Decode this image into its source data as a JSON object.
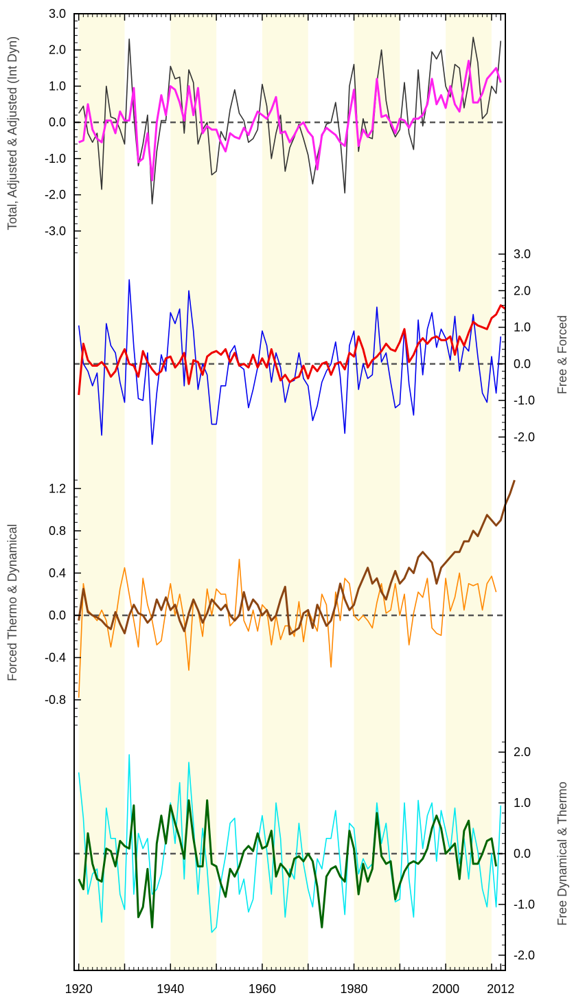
{
  "chart_data": {
    "type": "line",
    "x_range": [
      1919,
      2013
    ],
    "shaded_decades": [
      [
        1920,
        1930
      ],
      [
        1940,
        1950
      ],
      [
        1960,
        1970
      ],
      [
        1980,
        1990
      ],
      [
        2000,
        2010
      ]
    ],
    "colors": {
      "shade": "#fdfbe3",
      "zero_line": "#555555",
      "frame": "#000000"
    },
    "x_axis": {
      "ticks": [
        1920,
        1940,
        1960,
        1980,
        2000,
        2012
      ],
      "tick_labels": [
        "1920",
        "1940",
        "1960",
        "1980",
        "2000",
        "2012"
      ]
    },
    "panels": [
      {
        "ylabel": "Total, Adjusted & Adjusted (Int Dyn)",
        "label_side": "left",
        "ylim": [
          -3.6,
          3.0
        ],
        "ticks": [
          3.0,
          2.0,
          1.0,
          0.0,
          -1.0,
          -2.0,
          -3.0
        ],
        "tick_labels": [
          "3.0",
          "2.0",
          "1.0",
          "0.0",
          "-1.0",
          "-2.0",
          "-3.0"
        ],
        "series": [
          {
            "color": "#333333",
            "stroke_width": 1.6,
            "values": [
              0.25,
              0.45,
              -0.3,
              -0.55,
              -0.3,
              -1.85,
              1.0,
              0.15,
              0.1,
              -0.2,
              -0.6,
              2.3,
              0.2,
              -1.2,
              -0.6,
              0.2,
              -2.25,
              -0.8,
              0.05,
              0.05,
              1.55,
              1.2,
              1.25,
              -0.3,
              1.45,
              1.1,
              -0.6,
              -0.2,
              0.0,
              -1.45,
              -1.35,
              -0.25,
              -0.5,
              0.35,
              0.9,
              0.25,
              0.05,
              -0.55,
              -0.45,
              -0.2,
              1.05,
              0.45,
              -1.0,
              -0.3,
              0.2,
              -1.35,
              -0.7,
              -0.4,
              -0.05,
              -0.45,
              -0.9,
              -1.7,
              -0.95,
              -0.4,
              -0.05,
              0.0,
              0.55,
              -0.45,
              -1.95,
              1.0,
              1.6,
              -0.8,
              0.1,
              -0.4,
              -0.45,
              1.1,
              2.0,
              0.6,
              -0.1,
              -0.4,
              -0.2,
              1.1,
              -0.3,
              -0.75,
              1.45,
              -0.1,
              0.6,
              1.95,
              1.75,
              2.0,
              1.0,
              0.7,
              1.6,
              1.5,
              0.4,
              1.1,
              2.35,
              1.65,
              0.1,
              0.25,
              1.0,
              0.8,
              2.25
            ]
          },
          {
            "color": "#ff22ee",
            "stroke_width": 3,
            "values": [
              -0.55,
              -0.5,
              0.5,
              -0.2,
              -0.45,
              -0.55,
              0.05,
              0.05,
              -0.3,
              0.3,
              0.05,
              0.05,
              0.95,
              -1.1,
              -1.0,
              -0.3,
              -1.6,
              0.0,
              0.75,
              0.2,
              1.0,
              0.9,
              0.55,
              0.05,
              1.0,
              0.2,
              0.95,
              -0.3,
              -0.1,
              -0.2,
              -0.2,
              -0.55,
              -0.8,
              -0.3,
              -0.4,
              -0.45,
              -0.15,
              -0.35,
              0.0,
              0.3,
              0.2,
              0.1,
              0.35,
              0.7,
              -0.3,
              -0.25,
              -0.55,
              -0.35,
              -0.1,
              0.0,
              -0.25,
              -0.4,
              -1.3,
              -0.35,
              -0.15,
              -0.25,
              -0.35,
              -0.55,
              -0.65,
              0.2,
              0.9,
              -0.65,
              -0.2,
              -0.4,
              -0.2,
              1.2,
              0.15,
              0.2,
              0.0,
              -0.3,
              0.1,
              0.05,
              -0.15,
              0.1,
              0.1,
              0.2,
              0.5,
              1.2,
              0.5,
              0.75,
              0.4,
              1.0,
              0.5,
              0.3,
              1.0,
              1.7,
              0.55,
              0.55,
              0.8,
              1.2,
              1.35,
              1.5,
              1.1
            ]
          }
        ]
      },
      {
        "ylabel": "Free & Forced",
        "label_side": "right",
        "ylim": [
          -2.5,
          3.0
        ],
        "ticks": [
          3.0,
          2.0,
          1.0,
          0.0,
          -1.0,
          -2.0
        ],
        "tick_labels": [
          "3.0",
          "2.0",
          "1.0",
          "0.0",
          "-1.0",
          "-2.0"
        ],
        "series": [
          {
            "color": "#0000ee",
            "stroke_width": 1.6,
            "values": [
              1.05,
              0.0,
              -0.2,
              -0.6,
              -0.25,
              -1.95,
              1.1,
              0.5,
              0.3,
              -0.5,
              -1.05,
              2.3,
              0.45,
              -0.95,
              -1.0,
              0.3,
              -2.2,
              -0.8,
              0.25,
              -0.2,
              1.4,
              1.1,
              1.5,
              -0.6,
              2.0,
              0.9,
              -0.7,
              0.0,
              -0.3,
              -1.65,
              -1.65,
              -0.6,
              -0.6,
              0.3,
              0.5,
              -0.05,
              -0.15,
              -1.2,
              -0.7,
              -0.1,
              0.9,
              0.5,
              -0.5,
              0.3,
              -0.1,
              -1.05,
              -0.5,
              -0.45,
              0.3,
              -0.4,
              -0.6,
              -1.55,
              -1.15,
              -0.5,
              -0.2,
              0.0,
              0.6,
              -0.35,
              -1.9,
              0.5,
              0.9,
              -0.7,
              0.0,
              -0.4,
              -0.3,
              1.55,
              0.05,
              0.3,
              -0.5,
              -1.2,
              -1.1,
              0.95,
              -0.55,
              -1.4,
              1.2,
              -0.3,
              0.95,
              1.4,
              0.45,
              0.95,
              0.7,
              0.1,
              1.3,
              -0.2,
              0.5,
              0.35,
              1.35,
              0.2,
              -0.8,
              -1.05,
              0.2,
              -0.8,
              0.75
            ]
          },
          {
            "color": "#ee0000",
            "stroke_width": 3,
            "values": [
              -0.85,
              0.55,
              0.1,
              -0.05,
              -0.05,
              0.05,
              -0.1,
              -0.35,
              -0.2,
              0.15,
              0.4,
              0.0,
              -0.05,
              -0.35,
              0.35,
              0.05,
              -0.15,
              -0.3,
              -0.2,
              0.15,
              0.2,
              -0.1,
              0.05,
              0.3,
              -0.55,
              0.1,
              0.05,
              -0.3,
              0.2,
              0.3,
              0.35,
              0.25,
              0.4,
              0.05,
              0.3,
              -0.05,
              0.0,
              -0.1,
              0.25,
              -0.1,
              0.15,
              -0.1,
              0.4,
              -0.05,
              -0.45,
              -0.3,
              -0.5,
              -0.4,
              -0.35,
              -0.05,
              -0.4,
              -0.05,
              -0.2,
              0.0,
              0.05,
              -0.3,
              0.0,
              0.05,
              -0.15,
              0.3,
              0.2,
              0.75,
              0.4,
              -0.1,
              0.1,
              0.2,
              0.35,
              0.55,
              0.4,
              0.35,
              0.6,
              0.95,
              0.05,
              0.25,
              0.55,
              0.7,
              0.55,
              0.7,
              0.75,
              0.65,
              0.65,
              0.75,
              0.25,
              0.75,
              0.5,
              0.85,
              1.15,
              1.05,
              1.0,
              0.95,
              1.25,
              1.35,
              1.6,
              1.5
            ]
          }
        ]
      },
      {
        "ylabel": "Forced Thermo & Dynamical",
        "label_side": "left",
        "ylim": [
          -1.06,
          1.3
        ],
        "ticks": [
          1.2,
          0.8,
          0.4,
          0.0,
          -0.4,
          -0.8
        ],
        "tick_labels": [
          "1.2",
          "0.8",
          "0.4",
          "0.0",
          "-0.4",
          "-0.8"
        ],
        "series": [
          {
            "color": "#ff8800",
            "stroke_width": 1.6,
            "values": [
              -0.78,
              0.3,
              0.05,
              0.0,
              -0.05,
              0.05,
              -0.05,
              -0.3,
              -0.05,
              0.25,
              0.45,
              0.2,
              -0.05,
              -0.3,
              0.35,
              0.1,
              -0.05,
              -0.28,
              -0.24,
              0.05,
              0.3,
              0.0,
              0.2,
              -0.05,
              -0.52,
              0.15,
              0.05,
              -0.2,
              0.25,
              0.0,
              0.25,
              0.2,
              0.2,
              -0.1,
              -0.05,
              0.53,
              -0.05,
              -0.15,
              0.05,
              -0.15,
              0.1,
              0.05,
              -0.28,
              0.0,
              -0.23,
              -0.1,
              -0.1,
              -0.2,
              0.13,
              -0.25,
              0.05,
              -0.05,
              -0.15,
              0.2,
              0.1,
              -0.49,
              0.22,
              -0.05,
              0.35,
              0.3,
              0.0,
              -0.05,
              0.0,
              -0.05,
              -0.12,
              0.12,
              0.3,
              0.02,
              0.05,
              0.3,
              0.0,
              0.2,
              -0.28,
              0.02,
              0.22,
              0.17,
              0.35,
              -0.12,
              -0.17,
              -0.19,
              0.35,
              0.04,
              0.17,
              0.4,
              0.05,
              0.3,
              0.28,
              0.3,
              0.05,
              0.3,
              0.37,
              0.22
            ]
          },
          {
            "color": "#8b4513",
            "stroke_width": 3,
            "values": [
              -0.05,
              0.25,
              0.03,
              0.0,
              -0.02,
              -0.05,
              -0.1,
              -0.13,
              0.03,
              -0.08,
              -0.17,
              0.0,
              0.1,
              0.02,
              0.0,
              -0.07,
              -0.02,
              0.15,
              0.05,
              0.17,
              0.05,
              0.1,
              -0.05,
              -0.15,
              0.02,
              0.15,
              0.05,
              -0.07,
              0.02,
              0.15,
              0.1,
              0.05,
              0.1,
              0.0,
              -0.05,
              0.0,
              0.22,
              0.05,
              0.15,
              0.1,
              0.0,
              0.05,
              -0.05,
              0.0,
              0.15,
              0.27,
              -0.18,
              -0.15,
              -0.12,
              0.02,
              0.05,
              -0.12,
              0.1,
              0.0,
              -0.1,
              -0.05,
              0.1,
              0.3,
              0.15,
              0.05,
              0.1,
              0.25,
              0.35,
              0.45,
              0.3,
              0.35,
              0.22,
              0.15,
              0.3,
              0.42,
              0.3,
              0.35,
              0.45,
              0.4,
              0.55,
              0.6,
              0.55,
              0.5,
              0.3,
              0.45,
              0.5,
              0.55,
              0.6,
              0.6,
              0.7,
              0.7,
              0.8,
              0.75,
              0.85,
              0.95,
              0.9,
              0.85,
              0.9,
              1.05,
              1.15,
              1.28
            ]
          }
        ]
      },
      {
        "ylabel": "Free Dynamical & Thermo",
        "label_side": "right",
        "ylim": [
          -2.3,
          2.3
        ],
        "ticks": [
          2.0,
          1.0,
          0.0,
          -1.0,
          -2.0
        ],
        "tick_labels": [
          "2.0",
          "1.0",
          "0.0",
          "-1.0",
          "-2.0"
        ],
        "series": [
          {
            "color": "#00e8f0",
            "stroke_width": 1.6,
            "values": [
              1.6,
              0.7,
              -0.8,
              -0.4,
              -0.3,
              -1.35,
              0.9,
              0.3,
              0.3,
              -0.8,
              -1.1,
              1.95,
              -0.8,
              0.4,
              0.1,
              0.3,
              -0.8,
              -0.7,
              -0.4,
              0.3,
              1.0,
              0.2,
              1.4,
              -0.5,
              1.8,
              0.6,
              -0.8,
              0.5,
              -0.3,
              -1.55,
              -1.45,
              -0.55,
              -0.05,
              0.6,
              0.7,
              -0.8,
              -0.5,
              -1.15,
              -0.9,
              0.2,
              0.75,
              0.05,
              -0.8,
              1.0,
              0.3,
              -1.25,
              -0.3,
              -0.5,
              0.6,
              -0.2,
              -0.7,
              -1.05,
              -0.1,
              -0.3,
              0.3,
              0.3,
              0.85,
              -0.2,
              -1.2,
              0.6,
              0.5,
              -0.4,
              -0.1,
              -0.3,
              -0.2,
              1.0,
              0.2,
              0.6,
              -0.3,
              -0.95,
              -0.9,
              1.0,
              -0.5,
              -1.25,
              1.05,
              0.1,
              0.75,
              1.0,
              -0.15,
              0.85,
              0.45,
              0.05,
              0.9,
              -0.2,
              0.3,
              -0.5,
              0.5,
              0.05,
              -0.7,
              -1.05,
              0.0,
              -1.05,
              0.95
            ]
          },
          {
            "color": "#006400",
            "stroke_width": 3,
            "values": [
              -0.5,
              -0.7,
              0.4,
              -0.2,
              -0.5,
              -0.55,
              0.1,
              0.05,
              -0.25,
              0.25,
              0.15,
              0.1,
              0.95,
              -1.25,
              -1.05,
              -0.3,
              -1.45,
              0.2,
              0.75,
              0.2,
              0.95,
              0.6,
              0.3,
              -0.1,
              1.05,
              0.3,
              -0.25,
              -0.25,
              1.05,
              -0.2,
              -0.25,
              -0.6,
              -0.85,
              -0.3,
              -0.45,
              -0.25,
              0.05,
              0.15,
              0.05,
              0.4,
              0.1,
              0.15,
              0.45,
              -0.45,
              -0.2,
              -0.3,
              -0.45,
              -0.1,
              -0.05,
              -0.15,
              0.0,
              -0.15,
              -0.65,
              -1.45,
              -0.45,
              -0.3,
              -0.25,
              -0.45,
              -0.55,
              0.45,
              0.1,
              -0.8,
              -0.2,
              -0.55,
              -0.3,
              0.8,
              -0.05,
              -0.2,
              -0.15,
              -0.9,
              -0.6,
              -0.35,
              -0.2,
              -0.15,
              -0.2,
              -0.1,
              0.1,
              0.5,
              0.75,
              0.5,
              0.0,
              0.1,
              0.2,
              -0.5,
              0.45,
              0.65,
              -0.2,
              -0.2,
              0.0,
              0.25,
              0.3,
              -0.25
            ]
          }
        ]
      }
    ]
  }
}
